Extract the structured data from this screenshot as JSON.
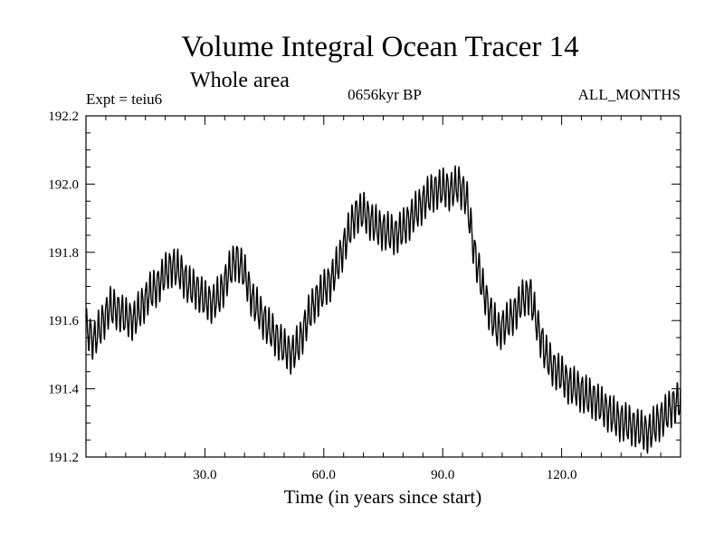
{
  "chart_data": {
    "type": "line",
    "title": "Volume Integral Ocean Tracer 14",
    "subtitle": "Whole area",
    "annotations": {
      "left": "Expt = teiu6",
      "center": "0656kyr BP",
      "right": "ALL_MONTHS"
    },
    "xlabel": "Time (in years since start)",
    "ylabel": "",
    "xlim": [
      0,
      150
    ],
    "ylim": [
      191.2,
      192.2
    ],
    "xticks": [
      30,
      60,
      90,
      120
    ],
    "xtick_labels": [
      "30.0",
      "60.0",
      "90.0",
      "120.0"
    ],
    "yticks": [
      191.2,
      191.4,
      191.6,
      191.8,
      192.0,
      192.2
    ],
    "ytick_labels": [
      "191.2",
      "191.4",
      "191.6",
      "191.8",
      "192.0",
      "192.2"
    ],
    "grid": false,
    "line_color": "#000000",
    "seasonal_amplitude": 0.05,
    "series": [
      {
        "name": "",
        "x": [
          0,
          2,
          4,
          6,
          8,
          10,
          12,
          14,
          16,
          18,
          20,
          22,
          24,
          26,
          28,
          30,
          32,
          34,
          36,
          38,
          40,
          42,
          44,
          46,
          48,
          50,
          52,
          54,
          56,
          58,
          60,
          62,
          64,
          66,
          68,
          70,
          72,
          74,
          76,
          78,
          80,
          82,
          84,
          86,
          88,
          90,
          92,
          94,
          96,
          98,
          100,
          102,
          104,
          106,
          108,
          110,
          112,
          114,
          116,
          118,
          120,
          122,
          124,
          126,
          128,
          130,
          132,
          134,
          136,
          138,
          140,
          142,
          144,
          146,
          148,
          150
        ],
        "y": [
          191.58,
          191.54,
          191.59,
          191.64,
          191.63,
          191.61,
          191.6,
          191.64,
          191.68,
          191.7,
          191.74,
          191.76,
          191.74,
          191.7,
          191.69,
          191.66,
          191.65,
          191.68,
          191.74,
          191.78,
          191.74,
          191.66,
          191.62,
          191.58,
          191.55,
          191.52,
          191.5,
          191.54,
          191.61,
          191.66,
          191.69,
          191.72,
          191.78,
          191.85,
          191.91,
          191.92,
          191.89,
          191.87,
          191.86,
          191.85,
          191.87,
          191.9,
          191.93,
          191.96,
          191.98,
          191.99,
          191.98,
          192.0,
          191.96,
          191.8,
          191.7,
          191.62,
          191.57,
          191.59,
          191.62,
          191.66,
          191.68,
          191.58,
          191.5,
          191.46,
          191.44,
          191.41,
          191.4,
          191.38,
          191.37,
          191.35,
          191.33,
          191.31,
          191.3,
          191.29,
          191.28,
          191.27,
          191.3,
          191.32,
          191.35,
          191.37
        ]
      }
    ]
  }
}
